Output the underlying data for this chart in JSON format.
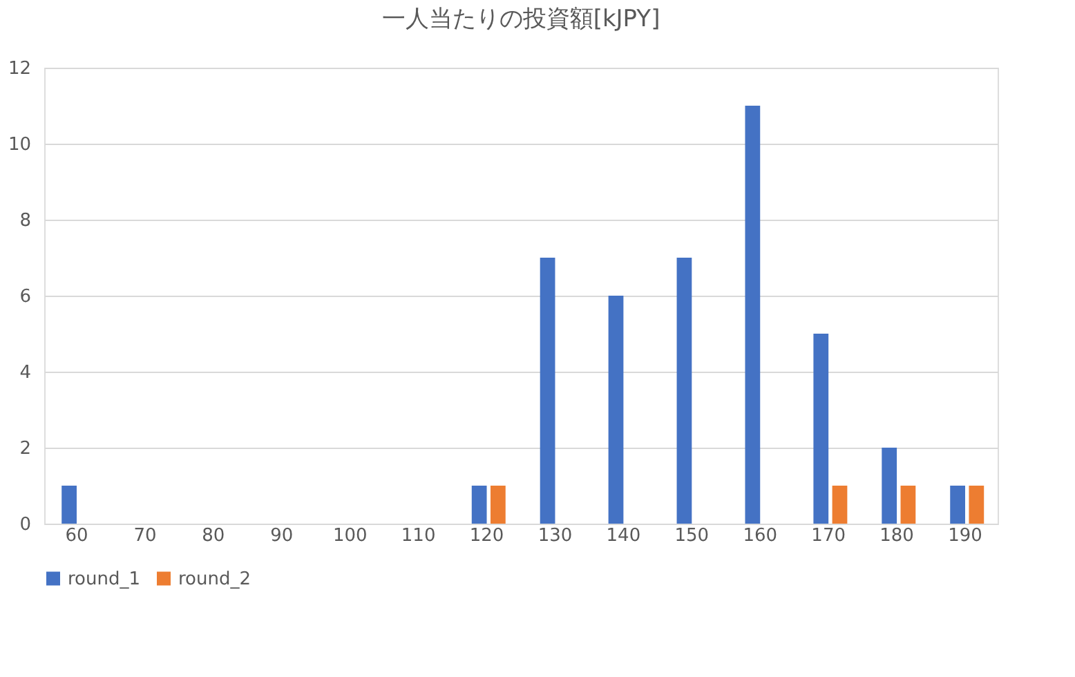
{
  "chart_data": {
    "type": "bar",
    "title": "一人当たりの投資額[kJPY]",
    "categories": [
      "60",
      "70",
      "80",
      "90",
      "100",
      "110",
      "120",
      "130",
      "140",
      "150",
      "160",
      "170",
      "180",
      "190"
    ],
    "series": [
      {
        "name": "round_1",
        "color": "#4472c4",
        "values": [
          1,
          0,
          0,
          0,
          0,
          0,
          1,
          7,
          6,
          7,
          11,
          5,
          2,
          1
        ]
      },
      {
        "name": "round_2",
        "color": "#ed7d31",
        "values": [
          0,
          0,
          0,
          0,
          0,
          0,
          1,
          0,
          0,
          0,
          0,
          1,
          1,
          1
        ]
      }
    ],
    "ylim": [
      0,
      12
    ],
    "yticks": [
      0,
      2,
      4,
      6,
      8,
      10,
      12
    ],
    "grid": "y",
    "legend": "bottom"
  }
}
